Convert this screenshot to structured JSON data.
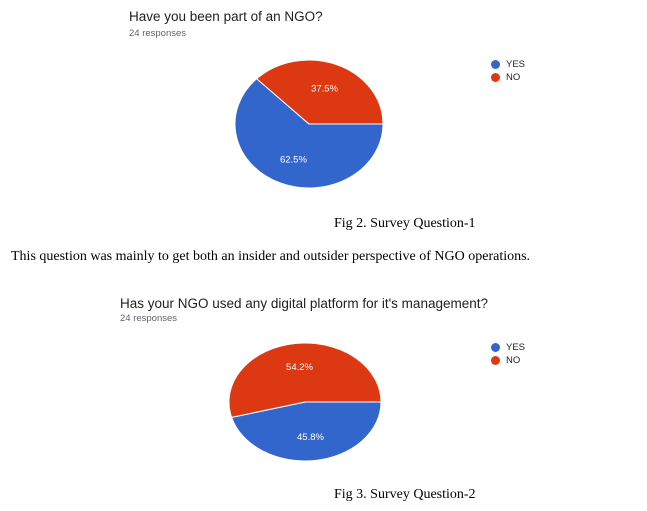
{
  "chart_data": [
    {
      "type": "pie",
      "title": "Have you been part of an NGO?",
      "subtitle": "24 responses",
      "categories": [
        "YES",
        "NO"
      ],
      "values": [
        62.5,
        37.5
      ],
      "data_labels": [
        "62.5%",
        "37.5%"
      ],
      "colors": [
        "#3366cc",
        "#dc3912"
      ],
      "legend_position": "right"
    },
    {
      "type": "pie",
      "title": "Has your NGO used any digital platform for it's management?",
      "subtitle": "24 responses",
      "categories": [
        "YES",
        "NO"
      ],
      "values": [
        45.8,
        54.2
      ],
      "data_labels": [
        "45.8%",
        "54.2%"
      ],
      "colors": [
        "#3366cc",
        "#dc3912"
      ],
      "legend_position": "right"
    }
  ],
  "captions": {
    "fig2": "Fig 2. Survey Question-1",
    "fig3": "Fig 3. Survey Question-2"
  },
  "body_text": "This question was mainly to get both an insider and outsider perspective of NGO operations."
}
